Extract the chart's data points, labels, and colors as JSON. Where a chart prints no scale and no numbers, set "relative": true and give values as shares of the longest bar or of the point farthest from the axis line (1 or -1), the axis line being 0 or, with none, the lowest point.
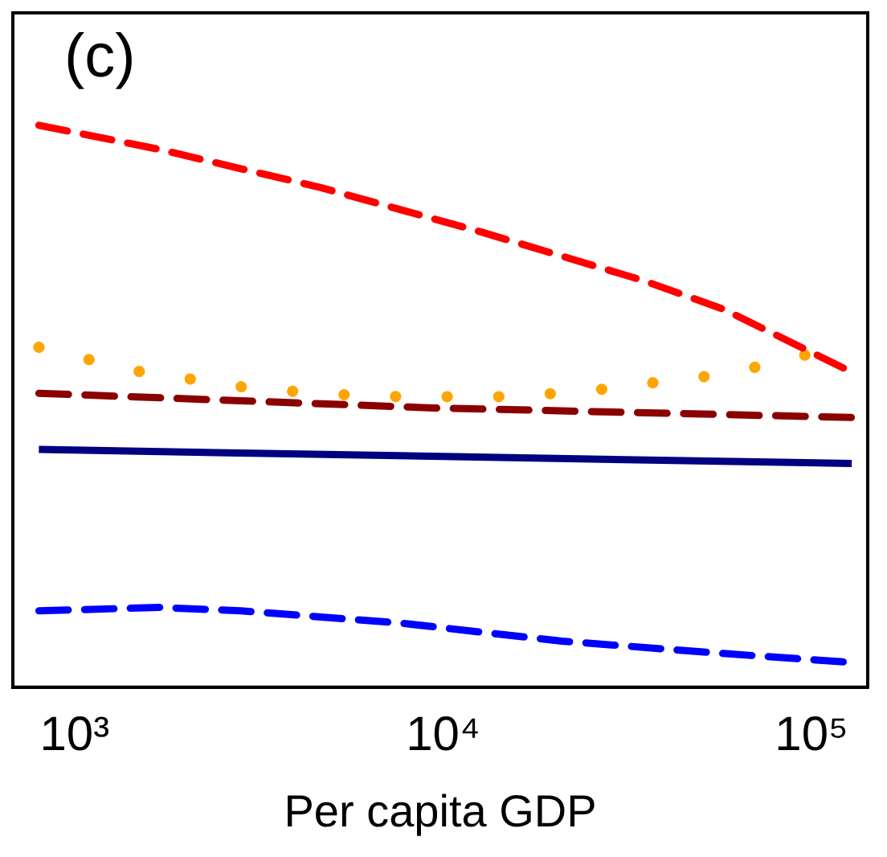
{
  "chart_data": {
    "type": "line",
    "title": "(c)",
    "xlabel": "Per capita GDP",
    "relative": true,
    "log": "x",
    "xlim": [
      680,
      142000
    ],
    "xticks": [
      {
        "value": 1000,
        "label": "10³"
      },
      {
        "value": 10000,
        "label": "10⁴"
      },
      {
        "value": 100000,
        "label": "10⁵"
      }
    ],
    "grid": false,
    "legend": false,
    "marker": "none",
    "series": [
      {
        "color": "#ff0000",
        "line_style": "dashed",
        "x": [
          800,
          1700,
          4660,
          12700,
          34800,
          57500,
          122000
        ],
        "values": [
          1.0,
          0.957,
          0.889,
          0.81,
          0.724,
          0.673,
          0.568
        ]
      },
      {
        "color": "#ffa500",
        "line_style": "dotted",
        "x": [
          800,
          1110,
          1540,
          2080,
          2880,
          4010,
          5520,
          7690,
          10600,
          14650,
          20200,
          27900,
          38400,
          53000,
          72400,
          100000
        ],
        "values": [
          0.605,
          0.582,
          0.56,
          0.548,
          0.534,
          0.526,
          0.52,
          0.517,
          0.517,
          0.517,
          0.523,
          0.531,
          0.543,
          0.554,
          0.571,
          0.594
        ]
      },
      {
        "color": "#8b0000",
        "line_style": "dashed",
        "x": [
          800,
          9420,
          128500
        ],
        "values": [
          0.523,
          0.497,
          0.48
        ]
      },
      {
        "color": "#000080",
        "line_style": "solid",
        "x": [
          800,
          128500
        ],
        "values": [
          0.423,
          0.398
        ]
      },
      {
        "color": "#0000ff",
        "line_style": "dashed",
        "x": [
          800,
          1700,
          2820,
          7690,
          21000,
          57500,
          122000
        ],
        "values": [
          0.136,
          0.142,
          0.136,
          0.114,
          0.082,
          0.06,
          0.045
        ]
      }
    ]
  }
}
